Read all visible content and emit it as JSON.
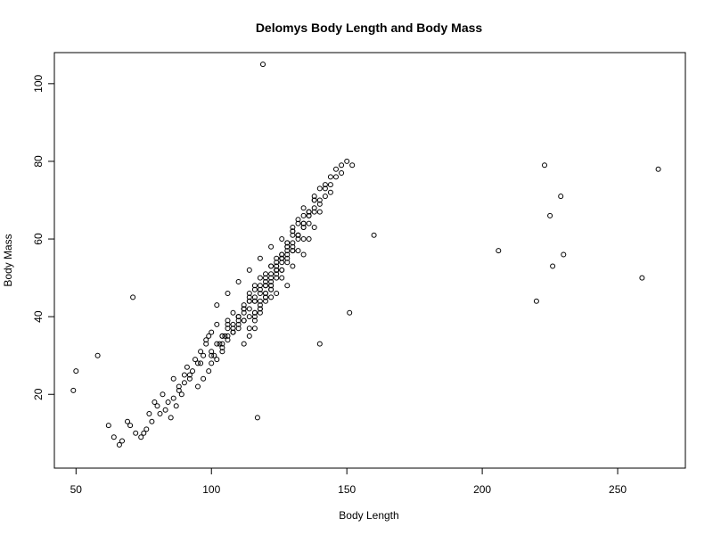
{
  "chart_data": {
    "type": "scatter",
    "title": "Delomys Body Length and Body Mass",
    "xlabel": "Body Length",
    "ylabel": "Body Mass",
    "xlim": [
      42,
      275
    ],
    "ylim": [
      1,
      108
    ],
    "x_ticks": [
      50,
      100,
      150,
      200,
      250
    ],
    "y_ticks": [
      20,
      40,
      60,
      80,
      100
    ],
    "grid": false,
    "legend": "none",
    "colors": {
      "points": "#000000",
      "background": "#ffffff"
    },
    "x": [
      49,
      50,
      58,
      71,
      62,
      64,
      66,
      67,
      69,
      70,
      72,
      74,
      75,
      76,
      77,
      78,
      79,
      80,
      81,
      82,
      83,
      84,
      85,
      86,
      87,
      88,
      89,
      90,
      86,
      88,
      90,
      91,
      92,
      93,
      94,
      95,
      96,
      97,
      98,
      99,
      95,
      97,
      99,
      100,
      101,
      102,
      103,
      104,
      105,
      106,
      98,
      100,
      102,
      104,
      106,
      108,
      110,
      112,
      114,
      116,
      100,
      102,
      104,
      106,
      108,
      110,
      112,
      114,
      116,
      118,
      104,
      106,
      108,
      110,
      112,
      114,
      116,
      118,
      120,
      122,
      106,
      108,
      110,
      112,
      114,
      116,
      118,
      120,
      122,
      124,
      108,
      110,
      112,
      114,
      116,
      118,
      120,
      122,
      124,
      126,
      110,
      112,
      114,
      116,
      118,
      120,
      122,
      124,
      126,
      128,
      112,
      114,
      116,
      118,
      120,
      122,
      124,
      126,
      128,
      130,
      114,
      116,
      118,
      120,
      122,
      124,
      126,
      128,
      130,
      132,
      116,
      118,
      120,
      122,
      124,
      126,
      128,
      130,
      132,
      134,
      118,
      120,
      122,
      124,
      126,
      128,
      130,
      132,
      134,
      136,
      120,
      122,
      124,
      126,
      128,
      130,
      132,
      134,
      136,
      138,
      122,
      124,
      126,
      128,
      130,
      132,
      134,
      136,
      138,
      140,
      126,
      128,
      130,
      132,
      134,
      136,
      138,
      140,
      142,
      144,
      130,
      132,
      134,
      136,
      138,
      140,
      142,
      144,
      146,
      148,
      134,
      136,
      138,
      140,
      142,
      144,
      146,
      148,
      150,
      152,
      92,
      96,
      100,
      104,
      108,
      112,
      116,
      120,
      124,
      128,
      102,
      106,
      110,
      114,
      118,
      122,
      126,
      130,
      134,
      138,
      119,
      117,
      140,
      151,
      160,
      206,
      220,
      223,
      225,
      226,
      229,
      230,
      259,
      265
    ],
    "y": [
      21,
      26,
      30,
      45,
      12,
      9,
      7,
      8,
      13,
      12,
      10,
      9,
      10,
      11,
      15,
      13,
      18,
      17,
      15,
      20,
      16,
      18,
      14,
      19,
      17,
      21,
      20,
      23,
      24,
      22,
      25,
      27,
      24,
      26,
      29,
      28,
      31,
      30,
      33,
      35,
      22,
      24,
      26,
      28,
      30,
      29,
      33,
      31,
      35,
      37,
      34,
      36,
      38,
      35,
      39,
      41,
      37,
      42,
      40,
      44,
      30,
      33,
      35,
      38,
      36,
      40,
      39,
      42,
      45,
      43,
      32,
      35,
      37,
      40,
      42,
      44,
      41,
      46,
      48,
      45,
      34,
      38,
      40,
      43,
      46,
      44,
      48,
      50,
      47,
      52,
      36,
      39,
      42,
      45,
      48,
      47,
      51,
      53,
      50,
      55,
      38,
      41,
      44,
      47,
      50,
      49,
      53,
      55,
      52,
      57,
      33,
      37,
      40,
      44,
      48,
      51,
      54,
      52,
      56,
      58,
      35,
      39,
      42,
      46,
      50,
      53,
      56,
      55,
      59,
      61,
      37,
      41,
      45,
      48,
      52,
      55,
      58,
      57,
      61,
      63,
      42,
      46,
      49,
      53,
      56,
      59,
      62,
      60,
      64,
      66,
      45,
      48,
      52,
      55,
      59,
      62,
      65,
      63,
      67,
      70,
      47,
      51,
      54,
      58,
      61,
      64,
      68,
      66,
      70,
      73,
      50,
      54,
      57,
      61,
      64,
      67,
      71,
      69,
      73,
      76,
      53,
      57,
      60,
      64,
      67,
      70,
      74,
      72,
      76,
      79,
      56,
      60,
      63,
      67,
      71,
      74,
      78,
      77,
      80,
      79,
      25,
      28,
      31,
      33,
      36,
      39,
      41,
      44,
      46,
      48,
      43,
      46,
      49,
      52,
      55,
      58,
      60,
      63,
      66,
      68,
      105,
      14,
      33,
      41,
      61,
      57,
      44,
      79,
      66,
      53,
      71,
      56,
      50,
      78
    ]
  }
}
